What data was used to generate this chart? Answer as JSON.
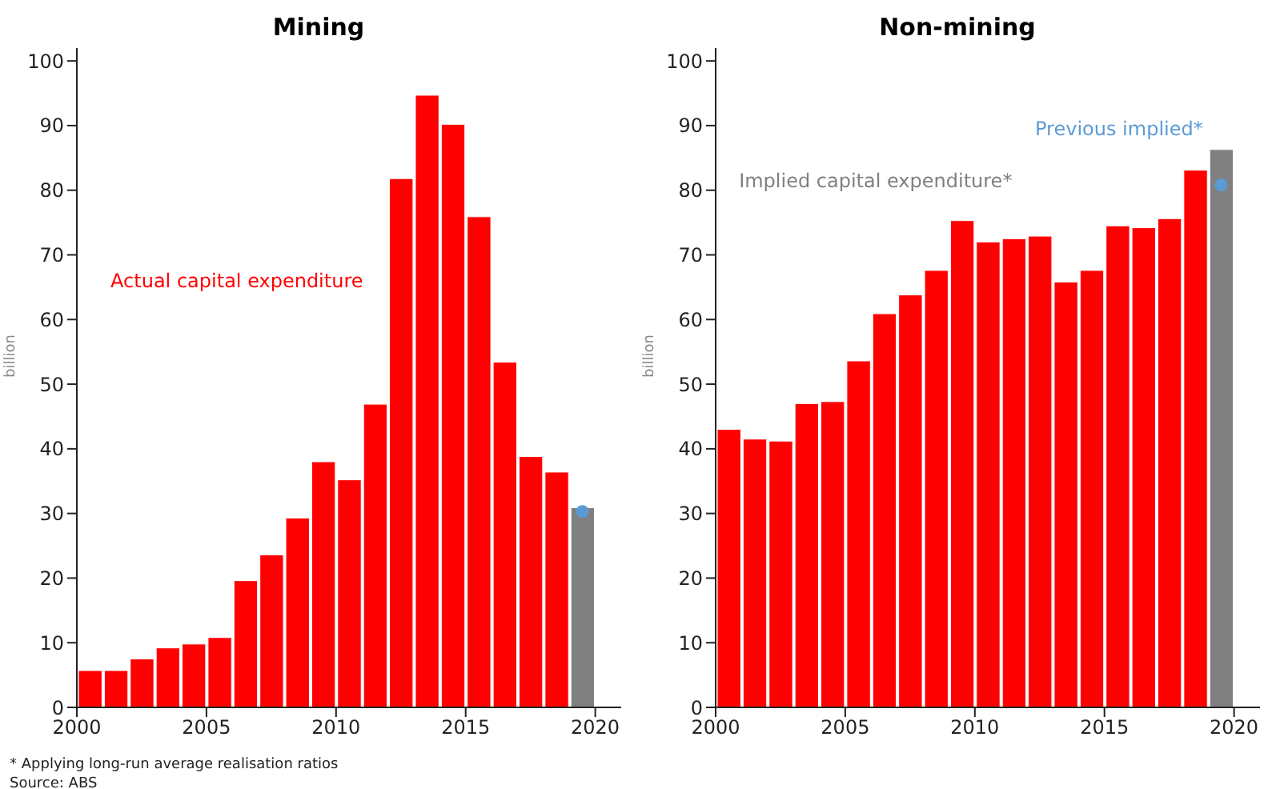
{
  "chart_data": [
    {
      "type": "bar",
      "title": "Mining",
      "ylabel": "billion",
      "xlim": [
        2000,
        2021
      ],
      "xticks": [
        2000,
        2005,
        2010,
        2015,
        2020
      ],
      "ylim": [
        0,
        102
      ],
      "yticks": [
        0,
        10,
        20,
        30,
        40,
        50,
        60,
        70,
        80,
        90,
        100
      ],
      "grid": false,
      "legend": false,
      "annotations": [
        "* Applying long-run average realisation ratios",
        "Source: ABS"
      ],
      "series": [
        {
          "name": "Actual capital expenditure",
          "color": "#ff0000",
          "x": [
            2000.5,
            2001.5,
            2002.5,
            2003.5,
            2004.5,
            2005.5,
            2006.5,
            2007.5,
            2008.5,
            2009.5,
            2010.5,
            2011.5,
            2012.5,
            2013.5,
            2014.5,
            2015.5,
            2016.5,
            2017.5,
            2018.5
          ],
          "values": [
            5.7,
            5.7,
            7.5,
            9.2,
            9.8,
            10.8,
            19.6,
            23.6,
            29.3,
            38.0,
            35.2,
            46.9,
            81.8,
            94.7,
            90.2,
            75.9,
            53.4,
            38.8,
            36.4
          ]
        },
        {
          "color": "#808080",
          "x": [
            2019.5
          ],
          "values": [
            30.9
          ]
        },
        {
          "type": "scatter",
          "color": "#5b9bd5",
          "marker": "circle",
          "x": [
            2019.5
          ],
          "values": [
            30.3
          ]
        }
      ]
    },
    {
      "type": "bar",
      "title": "Non-mining",
      "ylabel": "billion",
      "xlim": [
        2000,
        2021
      ],
      "xticks": [
        2000,
        2005,
        2010,
        2015,
        2020
      ],
      "ylim": [
        0,
        102
      ],
      "yticks": [
        0,
        10,
        20,
        30,
        40,
        50,
        60,
        70,
        80,
        90,
        100
      ],
      "grid": false,
      "legend": false,
      "series": [
        {
          "color": "#ff0000",
          "x": [
            2000.5,
            2001.5,
            2002.5,
            2003.5,
            2004.5,
            2005.5,
            2006.5,
            2007.5,
            2008.5,
            2009.5,
            2010.5,
            2011.5,
            2012.5,
            2013.5,
            2014.5,
            2015.5,
            2016.5,
            2017.5,
            2018.5
          ],
          "values": [
            43.0,
            41.5,
            41.2,
            47.0,
            47.3,
            53.6,
            60.9,
            63.8,
            67.6,
            75.3,
            72.0,
            72.5,
            72.9,
            65.8,
            67.6,
            74.5,
            74.2,
            75.6,
            83.1
          ]
        },
        {
          "name": "Implied capital expenditure*",
          "color": "#808080",
          "x": [
            2019.5
          ],
          "values": [
            86.3
          ]
        },
        {
          "type": "scatter",
          "name": "Previous implied*",
          "color": "#5b9bd5",
          "marker": "circle",
          "x": [
            2019.5
          ],
          "values": [
            80.8
          ]
        }
      ]
    }
  ]
}
